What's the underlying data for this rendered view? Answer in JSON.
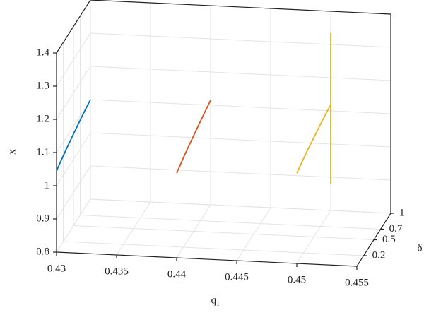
{
  "chart_data": {
    "type": "line3d",
    "xlabel": "q₁",
    "ylabel": "δ",
    "zlabel": "x",
    "xlim": [
      0.43,
      0.455
    ],
    "xticks": [
      0.43,
      0.435,
      0.44,
      0.445,
      0.45,
      0.455
    ],
    "ylim": [
      0,
      1
    ],
    "yticks": [
      0.2,
      0.5,
      0.7,
      1
    ],
    "zlim": [
      0.8,
      1.4
    ],
    "zticks": [
      0.8,
      0.9,
      1,
      1.1,
      1.2,
      1.3,
      1.4
    ],
    "grid": true,
    "series": [
      {
        "color": "#0072bd",
        "x": [
          0.43,
          0.43,
          0.43,
          0.43,
          0.43
        ],
        "y": [
          0,
          0.25,
          0.5,
          0.75,
          1
        ],
        "z": [
          1.045,
          1.062,
          1.076,
          1.089,
          1.1
        ]
      },
      {
        "color": "#d95319",
        "x": [
          0.44,
          0.44,
          0.44,
          0.44,
          0.44
        ],
        "y": [
          0,
          0.25,
          0.5,
          0.75,
          1
        ],
        "z": [
          1.055,
          1.073,
          1.088,
          1.102,
          1.115
        ]
      },
      {
        "color": "#edb120",
        "x": [
          0.45,
          0.45,
          0.45,
          0.45,
          0.45
        ],
        "y": [
          0,
          0.25,
          0.5,
          0.75,
          1
        ],
        "z": [
          1.072,
          1.087,
          1.099,
          1.11,
          1.119
        ]
      },
      {
        "color": "#edb120",
        "x": [
          0.45,
          0.45
        ],
        "y": [
          1,
          1
        ],
        "z": [
          0.88,
          1.334
        ]
      }
    ]
  }
}
